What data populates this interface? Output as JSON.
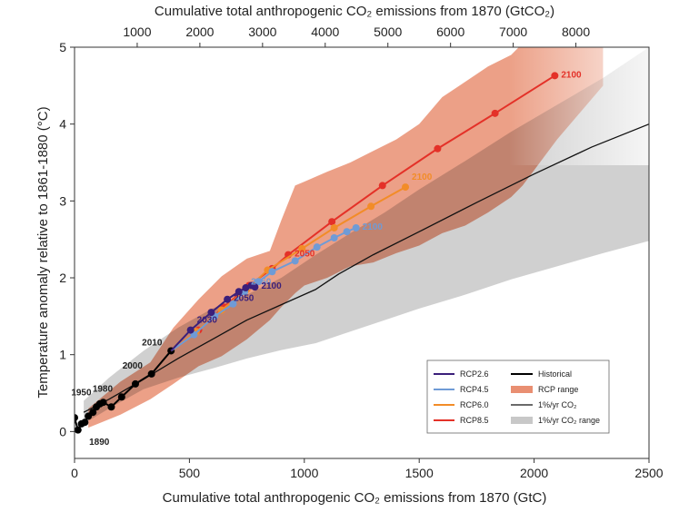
{
  "chart_data": {
    "type": "line",
    "title": "",
    "xlabel": "Cumulative total anthropogenic CO₂ emissions from 1870 (GtC)",
    "ylabel": "Temperature anomaly relative to 1861-1880 (°C)",
    "x2label": "Cumulative total anthropogenic CO₂ emissions from 1870 (GtCO₂)",
    "xlim": [
      0,
      2500
    ],
    "ylim": [
      -0.35,
      5
    ],
    "x_ticks": [
      0,
      500,
      1000,
      1500,
      2000,
      2500
    ],
    "y_ticks": [
      0,
      1,
      2,
      3,
      4,
      5
    ],
    "x2_ticks": [
      1000,
      2000,
      3000,
      4000,
      5000,
      6000,
      7000,
      8000
    ],
    "legend_position": "bottom-right",
    "colors": {
      "rcp26": "#3b1f7a",
      "rcp45": "#6f9bd6",
      "rcp60": "#f28c28",
      "rcp85": "#e43128",
      "historical": "#000000",
      "onepct": "#111111",
      "rcp_range": "#e98f72",
      "onepct_range": "#c8c8c8"
    },
    "series": [
      {
        "name": "Historical",
        "x": [
          0,
          15,
          30,
          45,
          60,
          80,
          95,
          110,
          125,
          160,
          205,
          265,
          335,
          420
        ],
        "y": [
          0.18,
          0.02,
          0.1,
          0.12,
          0.2,
          0.25,
          0.32,
          0.36,
          0.38,
          0.32,
          0.45,
          0.62,
          0.75,
          1.05
        ],
        "year_labels": [
          {
            "x": 40,
            "y": -0.03,
            "text": "1890"
          },
          {
            "x": 112,
            "y": 0.4,
            "text": "1950"
          },
          {
            "x": 205,
            "y": 0.45,
            "text": "1980"
          },
          {
            "x": 335,
            "y": 0.75,
            "text": "2000"
          },
          {
            "x": 420,
            "y": 1.05,
            "text": "2010"
          }
        ]
      },
      {
        "name": "RCP2.6",
        "x": [
          420,
          505,
          595,
          665,
          715,
          745,
          770,
          785
        ],
        "y": [
          1.05,
          1.32,
          1.55,
          1.72,
          1.82,
          1.87,
          1.9,
          1.88
        ],
        "year_labels": [
          {
            "x": 505,
            "y": 1.32,
            "text": "2030"
          },
          {
            "x": 665,
            "y": 1.72,
            "text": "2050"
          },
          {
            "x": 785,
            "y": 1.88,
            "text": "2100"
          }
        ]
      },
      {
        "name": "RCP4.5",
        "x": [
          420,
          520,
          610,
          690,
          740,
          800,
          860,
          960,
          1055,
          1130,
          1185,
          1225
        ],
        "y": [
          1.05,
          1.26,
          1.5,
          1.66,
          1.82,
          1.95,
          2.08,
          2.22,
          2.4,
          2.52,
          2.6,
          2.65
        ],
        "year_labels": [
          {
            "x": 740,
            "y": 1.82,
            "text": "2050"
          },
          {
            "x": 1225,
            "y": 2.65,
            "text": "2100"
          }
        ]
      },
      {
        "name": "RCP6.0",
        "x": [
          420,
          530,
          640,
          750,
          840,
          990,
          1130,
          1290,
          1440
        ],
        "y": [
          1.05,
          1.3,
          1.58,
          1.85,
          2.1,
          2.38,
          2.65,
          2.93,
          3.18
        ],
        "year_labels": [
          {
            "x": 1440,
            "y": 3.18,
            "text": "2100"
          }
        ]
      },
      {
        "name": "RCP8.5",
        "x": [
          420,
          540,
          650,
          760,
          860,
          930,
          1120,
          1340,
          1580,
          1830,
          2090
        ],
        "y": [
          1.05,
          1.32,
          1.62,
          1.9,
          2.12,
          2.3,
          2.73,
          3.2,
          3.68,
          4.14,
          4.63
        ],
        "year_labels": [
          {
            "x": 930,
            "y": 2.3,
            "text": "2050"
          },
          {
            "x": 2090,
            "y": 4.63,
            "text": "2100"
          }
        ]
      },
      {
        "name": "1%/yr CO₂",
        "x": [
          40,
          150,
          300,
          450,
          600,
          750,
          900,
          1050,
          1150,
          1300,
          1500,
          1750,
          2000,
          2250,
          2500
        ],
        "y": [
          0.25,
          0.42,
          0.68,
          0.95,
          1.2,
          1.45,
          1.65,
          1.85,
          2.05,
          2.3,
          2.6,
          2.98,
          3.35,
          3.7,
          4.0
        ],
        "year_labels": []
      }
    ],
    "bands": [
      {
        "name": "RCP range",
        "x": [
          60,
          200,
          330,
          430,
          540,
          640,
          750,
          850,
          900,
          960,
          1000,
          1100,
          1200,
          1300,
          1400,
          1500,
          1600,
          1700,
          1800,
          1900,
          1950,
          2000,
          2100,
          2200,
          2300
        ],
        "lower": [
          0.05,
          0.22,
          0.42,
          0.62,
          0.85,
          0.98,
          1.2,
          1.45,
          1.62,
          1.8,
          1.9,
          2.0,
          2.15,
          2.2,
          2.32,
          2.42,
          2.58,
          2.68,
          2.85,
          3.05,
          3.2,
          3.4,
          3.8,
          4.15,
          4.5
        ],
        "upper": [
          0.3,
          0.65,
          0.9,
          1.35,
          1.72,
          2.02,
          2.25,
          2.35,
          2.75,
          3.2,
          3.25,
          3.38,
          3.5,
          3.65,
          3.8,
          4.0,
          4.35,
          4.55,
          4.75,
          4.9,
          5.05,
          5.05,
          5.05,
          5.05,
          5.05
        ]
      },
      {
        "name": "1%/yr CO₂ range",
        "x": [
          40,
          150,
          300,
          450,
          600,
          750,
          900,
          1050,
          1200,
          1350,
          1500,
          1700,
          1900,
          2100,
          2300,
          2500
        ],
        "lower": [
          0.1,
          0.3,
          0.55,
          0.7,
          0.82,
          0.95,
          1.06,
          1.15,
          1.3,
          1.45,
          1.6,
          1.78,
          1.98,
          2.15,
          2.32,
          2.48
        ],
        "upper": [
          0.4,
          0.7,
          1.05,
          1.35,
          1.6,
          1.78,
          2.0,
          2.3,
          2.58,
          2.85,
          3.15,
          3.52,
          3.9,
          4.25,
          4.6,
          5.0
        ]
      }
    ],
    "legend": {
      "left_col": [
        "RCP2.6",
        "RCP4.5",
        "RCP6.0",
        "RCP8.5"
      ],
      "right_col": [
        "Historical",
        "RCP range",
        "1%/yr CO₂",
        "1%/yr CO₂ range"
      ]
    }
  }
}
